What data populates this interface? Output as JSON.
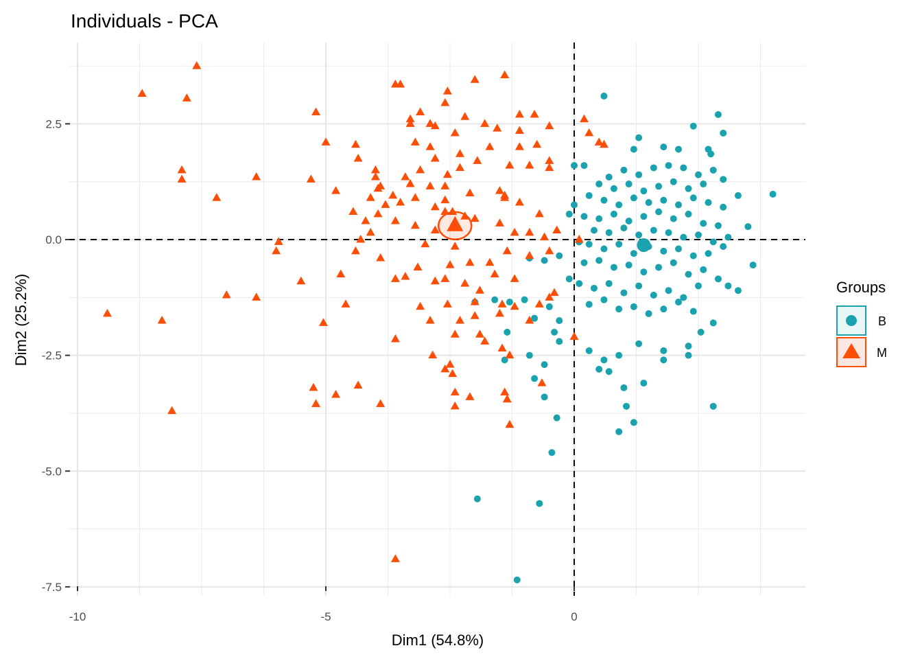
{
  "chart_data": {
    "type": "scatter",
    "title": "Individuals - PCA",
    "xlabel": "Dim1 (54.8%)",
    "ylabel": "Dim2 (25.2%)",
    "xlim": [
      -10.2,
      4.6
    ],
    "ylim": [
      -7.7,
      4.0
    ],
    "x_ticks": [
      {
        "v": -10,
        "label": "-10"
      },
      {
        "v": -5,
        "label": "-5"
      },
      {
        "v": 0,
        "label": "0"
      }
    ],
    "y_ticks": [
      {
        "v": 2.5,
        "label": "2.5"
      },
      {
        "v": 0,
        "label": "0.0"
      },
      {
        "v": -2.5,
        "label": "-2.5"
      },
      {
        "v": -5,
        "label": "-5.0"
      },
      {
        "v": -7.5,
        "label": "-7.5"
      }
    ],
    "grid": true,
    "reference_lines": {
      "x": 0,
      "y": 0,
      "style": "dashed"
    },
    "legend": {
      "title": "Groups",
      "position": "right"
    },
    "series": [
      {
        "name": "B",
        "shape": "circle",
        "color": "#1AA3AE",
        "centroid": {
          "x": 1.4,
          "y": -0.12
        },
        "points": [
          [
            0.6,
            3.1
          ],
          [
            2.9,
            2.7
          ],
          [
            3.0,
            2.3
          ],
          [
            2.4,
            2.45
          ],
          [
            1.3,
            2.2
          ],
          [
            1.2,
            1.95
          ],
          [
            1.8,
            2.0
          ],
          [
            2.1,
            1.95
          ],
          [
            2.7,
            1.95
          ],
          [
            2.75,
            1.85
          ],
          [
            0.2,
            1.6
          ],
          [
            0.0,
            1.6
          ],
          [
            0.7,
            1.35
          ],
          [
            1.0,
            1.5
          ],
          [
            1.3,
            1.4
          ],
          [
            1.6,
            1.55
          ],
          [
            1.9,
            1.6
          ],
          [
            2.2,
            1.55
          ],
          [
            2.5,
            1.4
          ],
          [
            2.8,
            1.5
          ],
          [
            0.5,
            1.2
          ],
          [
            0.8,
            1.1
          ],
          [
            1.1,
            1.2
          ],
          [
            1.4,
            1.05
          ],
          [
            1.7,
            1.15
          ],
          [
            2.0,
            1.25
          ],
          [
            2.3,
            1.1
          ],
          [
            2.6,
            1.2
          ],
          [
            3.0,
            1.3
          ],
          [
            3.3,
            0.95
          ],
          [
            4.0,
            0.98
          ],
          [
            0.3,
            0.95
          ],
          [
            0.6,
            0.85
          ],
          [
            0.9,
            0.75
          ],
          [
            1.2,
            0.9
          ],
          [
            1.5,
            0.8
          ],
          [
            1.8,
            0.85
          ],
          [
            2.1,
            0.75
          ],
          [
            2.4,
            0.9
          ],
          [
            2.7,
            0.8
          ],
          [
            3.0,
            0.7
          ],
          [
            0.0,
            0.75
          ],
          [
            -0.1,
            0.55
          ],
          [
            0.2,
            0.5
          ],
          [
            0.5,
            0.45
          ],
          [
            0.8,
            0.55
          ],
          [
            1.1,
            0.4
          ],
          [
            1.4,
            0.5
          ],
          [
            1.7,
            0.6
          ],
          [
            2.0,
            0.45
          ],
          [
            2.3,
            0.55
          ],
          [
            2.6,
            0.35
          ],
          [
            2.9,
            0.3
          ],
          [
            3.5,
            0.28
          ],
          [
            0.4,
            0.2
          ],
          [
            0.7,
            0.15
          ],
          [
            1.0,
            0.25
          ],
          [
            1.3,
            0.1
          ],
          [
            1.6,
            0.2
          ],
          [
            1.9,
            0.15
          ],
          [
            2.2,
            0.05
          ],
          [
            2.5,
            0.1
          ],
          [
            2.8,
            -0.05
          ],
          [
            3.1,
            0.05
          ],
          [
            0.1,
            -0.05
          ],
          [
            0.3,
            -0.1
          ],
          [
            0.6,
            -0.2
          ],
          [
            0.9,
            -0.1
          ],
          [
            1.2,
            -0.3
          ],
          [
            1.5,
            -0.15
          ],
          [
            1.8,
            -0.25
          ],
          [
            2.1,
            -0.2
          ],
          [
            2.4,
            -0.35
          ],
          [
            2.7,
            -0.3
          ],
          [
            3.0,
            -0.15
          ],
          [
            3.6,
            -0.55
          ],
          [
            0.2,
            -0.5
          ],
          [
            0.5,
            -0.45
          ],
          [
            0.8,
            -0.6
          ],
          [
            1.1,
            -0.55
          ],
          [
            1.4,
            -0.7
          ],
          [
            1.7,
            -0.6
          ],
          [
            2.0,
            -0.5
          ],
          [
            2.3,
            -0.75
          ],
          [
            2.6,
            -0.65
          ],
          [
            2.9,
            -0.85
          ],
          [
            -0.9,
            -0.4
          ],
          [
            -0.6,
            -0.45
          ],
          [
            -0.3,
            -0.35
          ],
          [
            -0.1,
            -0.85
          ],
          [
            0.1,
            -0.95
          ],
          [
            0.4,
            -1.05
          ],
          [
            0.7,
            -0.95
          ],
          [
            1.0,
            -1.15
          ],
          [
            1.3,
            -1.0
          ],
          [
            1.6,
            -1.2
          ],
          [
            1.9,
            -1.1
          ],
          [
            2.2,
            -1.25
          ],
          [
            2.5,
            -1.0
          ],
          [
            3.1,
            -1.0
          ],
          [
            3.3,
            -1.1
          ],
          [
            0.3,
            -1.4
          ],
          [
            0.6,
            -1.3
          ],
          [
            0.9,
            -1.5
          ],
          [
            1.2,
            -1.45
          ],
          [
            1.5,
            -1.6
          ],
          [
            1.8,
            -1.5
          ],
          [
            2.1,
            -1.35
          ],
          [
            2.4,
            -1.55
          ],
          [
            2.8,
            -1.8
          ],
          [
            -1.0,
            -1.3
          ],
          [
            -1.3,
            -1.35
          ],
          [
            -1.6,
            -1.3
          ],
          [
            -2.0,
            -1.35
          ],
          [
            -0.5,
            -1.45
          ],
          [
            -0.8,
            -1.7
          ],
          [
            -0.3,
            -1.75
          ],
          [
            -1.35,
            -2.0
          ],
          [
            -0.4,
            -2.0
          ],
          [
            -0.3,
            -2.2
          ],
          [
            0.3,
            -2.4
          ],
          [
            0.6,
            -2.6
          ],
          [
            0.9,
            -2.5
          ],
          [
            1.3,
            -2.25
          ],
          [
            1.8,
            -2.4
          ],
          [
            2.3,
            -2.5
          ],
          [
            2.55,
            -2.0
          ],
          [
            1.8,
            -2.6
          ],
          [
            2.3,
            -2.3
          ],
          [
            0.5,
            -2.8
          ],
          [
            0.7,
            -2.85
          ],
          [
            1.0,
            -3.2
          ],
          [
            1.4,
            -3.1
          ],
          [
            -1.4,
            -2.6
          ],
          [
            -0.9,
            -2.5
          ],
          [
            -0.6,
            -2.7
          ],
          [
            -0.8,
            -3.0
          ],
          [
            -0.6,
            -3.4
          ],
          [
            1.05,
            -3.6
          ],
          [
            2.8,
            -3.6
          ],
          [
            -0.35,
            -3.85
          ],
          [
            0.9,
            -4.15
          ],
          [
            1.2,
            -3.95
          ],
          [
            -0.45,
            -4.6
          ],
          [
            -1.95,
            -5.6
          ],
          [
            -0.7,
            -5.7
          ],
          [
            -1.15,
            -7.35
          ]
        ]
      },
      {
        "name": "M",
        "shape": "triangle",
        "color": "#FC4E07",
        "centroid": {
          "x": -2.4,
          "y": 0.3
        },
        "points": [
          [
            -7.6,
            3.75
          ],
          [
            -8.7,
            3.15
          ],
          [
            -7.8,
            3.05
          ],
          [
            -3.6,
            3.35
          ],
          [
            -3.5,
            3.35
          ],
          [
            -1.4,
            3.55
          ],
          [
            -2.0,
            3.45
          ],
          [
            -2.55,
            3.2
          ],
          [
            -2.6,
            2.95
          ],
          [
            -3.1,
            2.75
          ],
          [
            -3.3,
            2.6
          ],
          [
            -2.9,
            2.5
          ],
          [
            -2.2,
            2.65
          ],
          [
            -1.8,
            2.5
          ],
          [
            -1.1,
            2.7
          ],
          [
            -0.8,
            2.7
          ],
          [
            -3.3,
            2.5
          ],
          [
            -2.8,
            2.45
          ],
          [
            -2.4,
            2.3
          ],
          [
            -1.55,
            2.4
          ],
          [
            -1.1,
            2.35
          ],
          [
            -0.5,
            2.45
          ],
          [
            0.2,
            2.6
          ],
          [
            0.3,
            2.3
          ],
          [
            0.5,
            2.1
          ],
          [
            0.6,
            2.05
          ],
          [
            -5.2,
            2.75
          ],
          [
            -5.0,
            2.1
          ],
          [
            -4.4,
            2.05
          ],
          [
            -4.35,
            1.75
          ],
          [
            -3.2,
            2.1
          ],
          [
            -2.9,
            2.0
          ],
          [
            -2.3,
            1.85
          ],
          [
            -1.7,
            2.0
          ],
          [
            -1.1,
            2.0
          ],
          [
            -0.75,
            2.05
          ],
          [
            -0.5,
            1.7
          ],
          [
            -0.5,
            1.55
          ],
          [
            -0.9,
            1.6
          ],
          [
            -1.3,
            1.6
          ],
          [
            -1.95,
            1.7
          ],
          [
            -2.3,
            1.55
          ],
          [
            -2.55,
            1.4
          ],
          [
            -2.8,
            1.75
          ],
          [
            -3.1,
            1.5
          ],
          [
            -3.4,
            1.35
          ],
          [
            -4.0,
            1.5
          ],
          [
            -4.0,
            1.35
          ],
          [
            -6.4,
            1.35
          ],
          [
            -5.3,
            1.3
          ],
          [
            -4.8,
            1.05
          ],
          [
            -7.9,
            1.5
          ],
          [
            -7.9,
            1.3
          ],
          [
            -7.2,
            0.9
          ],
          [
            -3.9,
            1.15
          ],
          [
            -3.95,
            1.1
          ],
          [
            -3.3,
            1.2
          ],
          [
            -2.9,
            1.15
          ],
          [
            -2.6,
            1.15
          ],
          [
            -1.5,
            1.05
          ],
          [
            -1.4,
            0.95
          ],
          [
            -2.1,
            1.0
          ],
          [
            -2.6,
            0.85
          ],
          [
            -3.2,
            0.9
          ],
          [
            -3.65,
            0.95
          ],
          [
            -4.1,
            0.9
          ],
          [
            -3.8,
            0.75
          ],
          [
            -3.5,
            0.8
          ],
          [
            -2.8,
            0.7
          ],
          [
            -2.45,
            0.6
          ],
          [
            -1.4,
            0.9
          ],
          [
            -1.1,
            0.8
          ],
          [
            -0.7,
            0.55
          ],
          [
            -2.2,
            0.5
          ],
          [
            -2.0,
            0.45
          ],
          [
            -4.45,
            0.6
          ],
          [
            -3.95,
            0.55
          ],
          [
            -4.2,
            0.4
          ],
          [
            -4.1,
            0.15
          ],
          [
            -3.6,
            0.4
          ],
          [
            -3.2,
            0.3
          ],
          [
            -2.6,
            0.6
          ],
          [
            -2.8,
            0.2
          ],
          [
            -1.5,
            0.35
          ],
          [
            -1.2,
            0.15
          ],
          [
            -0.9,
            0.15
          ],
          [
            -0.35,
            0.2
          ],
          [
            -0.6,
            0.05
          ],
          [
            0.1,
            0.0
          ],
          [
            -4.3,
            0.0
          ],
          [
            -5.95,
            -0.05
          ],
          [
            -6.0,
            -0.25
          ],
          [
            -3.0,
            -0.1
          ],
          [
            -2.4,
            -0.15
          ],
          [
            -2.5,
            -0.55
          ],
          [
            -2.1,
            -0.5
          ],
          [
            -1.7,
            -0.5
          ],
          [
            -1.35,
            -0.25
          ],
          [
            -0.9,
            -0.35
          ],
          [
            -0.5,
            -0.25
          ],
          [
            -4.4,
            -0.25
          ],
          [
            -3.9,
            -0.4
          ],
          [
            -3.15,
            -0.6
          ],
          [
            -2.6,
            -0.85
          ],
          [
            -2.2,
            -0.95
          ],
          [
            -1.6,
            -0.75
          ],
          [
            -1.2,
            -0.85
          ],
          [
            -4.7,
            -0.75
          ],
          [
            -5.5,
            -0.9
          ],
          [
            -3.6,
            -0.85
          ],
          [
            -3.4,
            -0.8
          ],
          [
            -2.8,
            -0.9
          ],
          [
            -1.9,
            -1.1
          ],
          [
            -0.5,
            -1.25
          ],
          [
            -0.4,
            -1.15
          ],
          [
            -7.0,
            -1.2
          ],
          [
            -6.4,
            -1.25
          ],
          [
            -4.6,
            -1.4
          ],
          [
            -3.1,
            -1.45
          ],
          [
            -2.55,
            -1.4
          ],
          [
            -2.0,
            -1.35
          ],
          [
            -1.45,
            -1.4
          ],
          [
            -1.2,
            -1.45
          ],
          [
            -0.7,
            -1.4
          ],
          [
            -9.4,
            -1.6
          ],
          [
            -8.3,
            -1.75
          ],
          [
            -5.05,
            -1.8
          ],
          [
            -2.9,
            -1.75
          ],
          [
            -2.3,
            -1.75
          ],
          [
            -2.0,
            -1.65
          ],
          [
            -1.5,
            -1.6
          ],
          [
            -0.9,
            -1.75
          ],
          [
            -2.4,
            -2.05
          ],
          [
            -1.9,
            -2.05
          ],
          [
            -1.8,
            -2.2
          ],
          [
            -1.45,
            -2.35
          ],
          [
            -1.3,
            -2.5
          ],
          [
            0.0,
            -2.1
          ],
          [
            -3.6,
            -2.15
          ],
          [
            -2.85,
            -2.5
          ],
          [
            -2.5,
            -2.7
          ],
          [
            -2.6,
            -2.8
          ],
          [
            -2.45,
            -2.9
          ],
          [
            -0.65,
            -3.1
          ],
          [
            -5.25,
            -3.2
          ],
          [
            -4.35,
            -3.15
          ],
          [
            -5.2,
            -3.55
          ],
          [
            -4.8,
            -3.35
          ],
          [
            -3.9,
            -3.55
          ],
          [
            -2.4,
            -3.3
          ],
          [
            -2.1,
            -3.4
          ],
          [
            -1.4,
            -3.3
          ],
          [
            -1.35,
            -3.45
          ],
          [
            -2.4,
            -3.6
          ],
          [
            -8.1,
            -3.7
          ],
          [
            -1.3,
            -4.0
          ],
          [
            -3.6,
            -6.9
          ]
        ]
      }
    ]
  }
}
